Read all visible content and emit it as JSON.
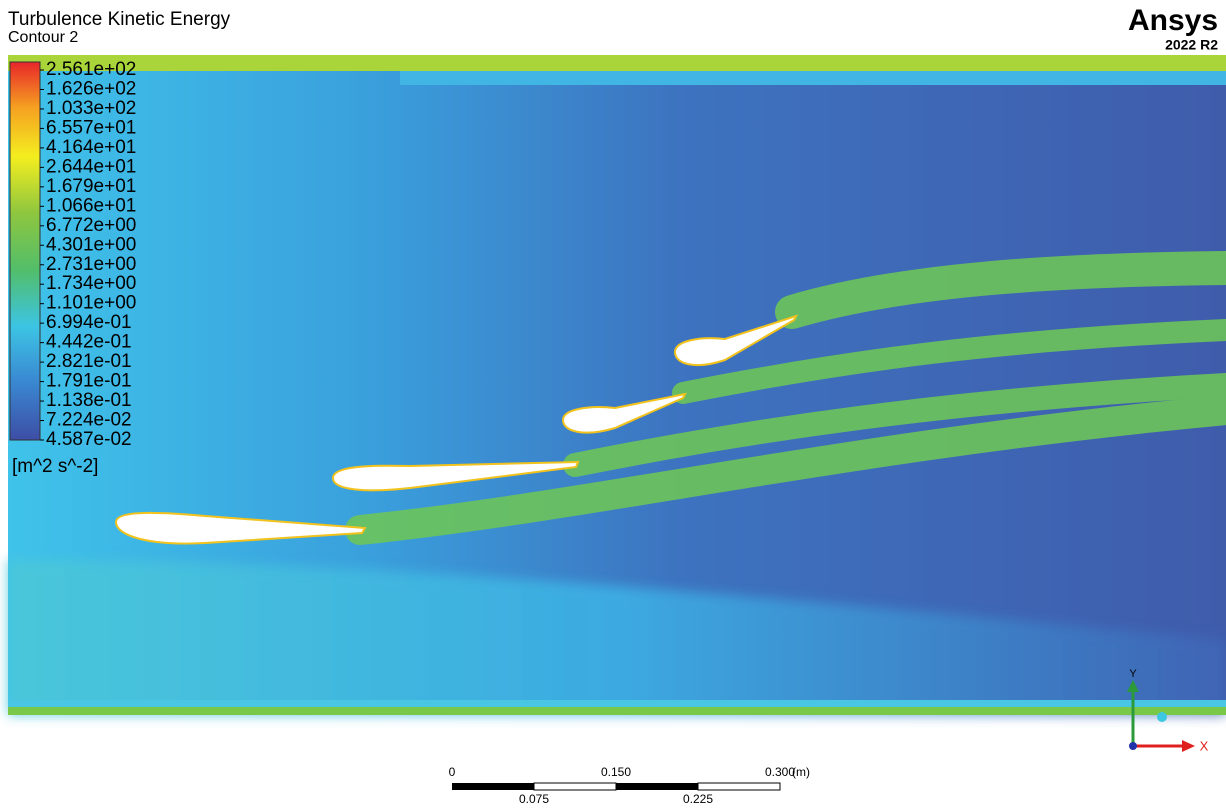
{
  "header": {
    "title": "Turbulence Kinetic Energy",
    "subtitle": "Contour 2",
    "logo": "Ansys",
    "version": "2022 R2"
  },
  "legend": {
    "labels": [
      "2.561e+02",
      "1.626e+02",
      "1.033e+02",
      "6.557e+01",
      "4.164e+01",
      "2.644e+01",
      "1.679e+01",
      "1.066e+01",
      "6.772e+00",
      "4.301e+00",
      "2.731e+00",
      "1.734e+00",
      "1.101e+00",
      "6.994e-01",
      "4.442e-01",
      "2.821e-01",
      "1.791e-01",
      "1.138e-01",
      "7.224e-02",
      "4.587e-02"
    ],
    "unit": "[m^2 s^-2]"
  },
  "scale_bar": {
    "top_labels": [
      "0",
      "0.150",
      "0.300"
    ],
    "bottom_labels": [
      "0.075",
      "0.225"
    ],
    "unit": "(m)"
  },
  "axes": {
    "y": "Y",
    "x": "X"
  }
}
